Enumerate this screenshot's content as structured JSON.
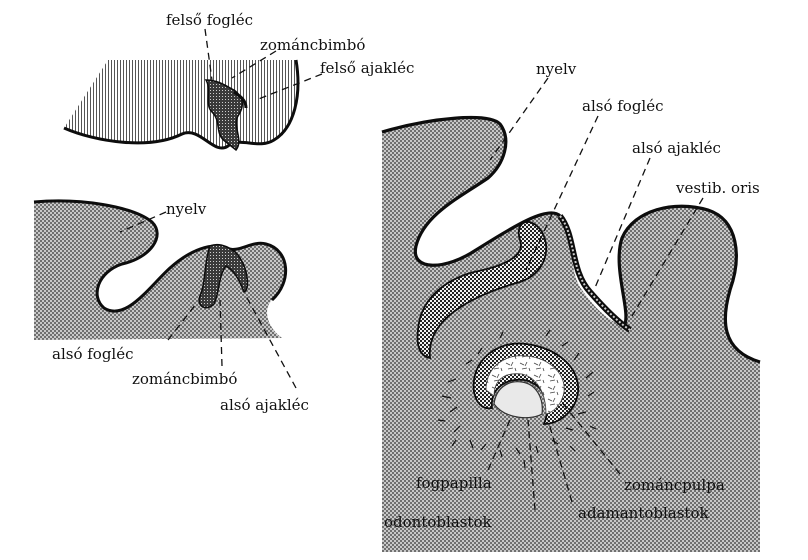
{
  "colors": {
    "ink": "#111111",
    "tissue_fill": "#8c8c8c",
    "background": "#ffffff"
  },
  "upper_panel": {
    "labels": {
      "felso_foglec": "felső fogléc",
      "zomancbimbo": "zománcbimbó",
      "felso_ajaklec": "felső ajakléc"
    }
  },
  "lower_left_panel": {
    "labels": {
      "nyelv": "nyelv",
      "also_foglec": "alsó fogléc",
      "zomancbimbo": "zománcbimbó",
      "also_ajaklec": "alsó ajakléc"
    }
  },
  "right_panel": {
    "labels": {
      "nyelv": "nyelv",
      "also_foglec": "alsó fogléc",
      "also_ajaklec": "alsó ajakléc",
      "vestib_oris": "vestib. oris",
      "fogpapilla": "fogpapilla",
      "zomancpulpa": "zománcpulpa",
      "odontoblastok": "odontoblastok",
      "adamantoblastok": "adamantoblastok"
    }
  }
}
